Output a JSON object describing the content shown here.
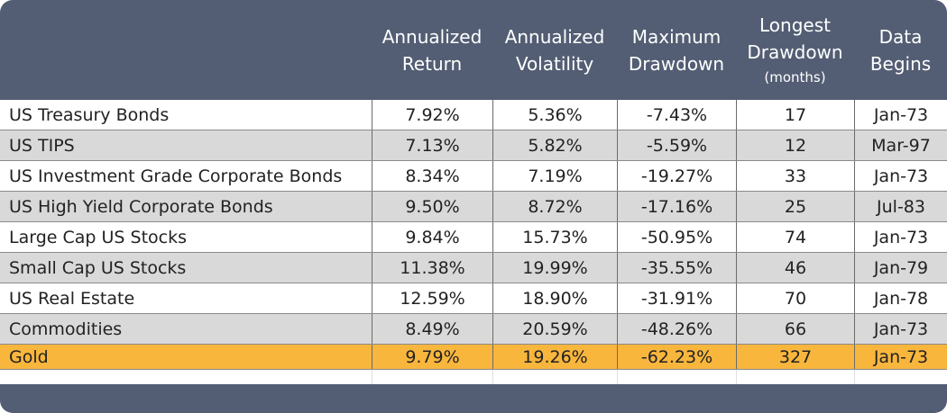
{
  "table": {
    "headers": [
      {
        "line1": "Annualized",
        "line2": "Return",
        "sub": ""
      },
      {
        "line1": "Annualized",
        "line2": "Volatility",
        "sub": ""
      },
      {
        "line1": "Maximum",
        "line2": "Drawdown",
        "sub": ""
      },
      {
        "line1": "Longest",
        "line2": "Drawdown",
        "sub": "(months)"
      },
      {
        "line1": "Data",
        "line2": "Begins",
        "sub": ""
      }
    ],
    "rows": [
      {
        "asset": "US Treasury Bonds",
        "return": "7.92%",
        "volatility": "5.36%",
        "max_drawdown": "-7.43%",
        "longest_drawdown": "17",
        "data_begins": "Jan-73"
      },
      {
        "asset": "US TIPS",
        "return": "7.13%",
        "volatility": "5.82%",
        "max_drawdown": "-5.59%",
        "longest_drawdown": "12",
        "data_begins": "Mar-97"
      },
      {
        "asset": "US Investment Grade Corporate Bonds",
        "return": "8.34%",
        "volatility": "7.19%",
        "max_drawdown": "-19.27%",
        "longest_drawdown": "33",
        "data_begins": "Jan-73"
      },
      {
        "asset": "US High Yield Corporate Bonds",
        "return": "9.50%",
        "volatility": "8.72%",
        "max_drawdown": "-17.16%",
        "longest_drawdown": "25",
        "data_begins": "Jul-83"
      },
      {
        "asset": "Large Cap US Stocks",
        "return": "9.84%",
        "volatility": "15.73%",
        "max_drawdown": "-50.95%",
        "longest_drawdown": "74",
        "data_begins": "Jan-73"
      },
      {
        "asset": "Small Cap US Stocks",
        "return": "11.38%",
        "volatility": "19.99%",
        "max_drawdown": "-35.55%",
        "longest_drawdown": "46",
        "data_begins": "Jan-79"
      },
      {
        "asset": "US Real Estate",
        "return": "12.59%",
        "volatility": "18.90%",
        "max_drawdown": "-31.91%",
        "longest_drawdown": "70",
        "data_begins": "Jan-78"
      },
      {
        "asset": "Commodities",
        "return": "8.49%",
        "volatility": "20.59%",
        "max_drawdown": "-48.26%",
        "longest_drawdown": "66",
        "data_begins": "Jan-73"
      },
      {
        "asset": "Gold",
        "return": "9.79%",
        "volatility": "19.26%",
        "max_drawdown": "-62.23%",
        "longest_drawdown": "327",
        "data_begins": "Jan-73"
      }
    ]
  },
  "colors": {
    "header_bg": "#535e74",
    "highlight_row": "#f8b63d",
    "alt_row": "#d9d9d9"
  }
}
